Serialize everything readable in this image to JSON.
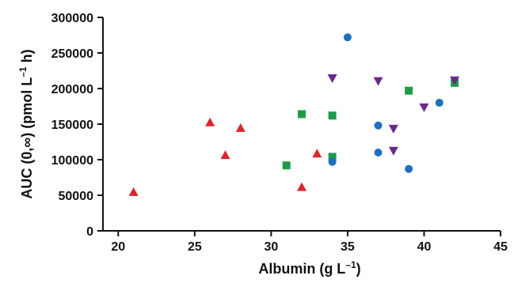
{
  "chart_data": {
    "type": "scatter",
    "xlabel": "Albumin (g L",
    "xlabel_sup": "–1",
    "xlabel_close": ")",
    "ylabel": "AUC (0,∞) (pmol L",
    "ylabel_sup": "–1",
    "ylabel_close": " h)",
    "xlim": [
      19,
      45
    ],
    "ylim": [
      0,
      300000
    ],
    "x_ticks": [
      20,
      25,
      30,
      35,
      40,
      45
    ],
    "y_ticks": [
      0,
      50000,
      100000,
      150000,
      200000,
      250000,
      300000
    ],
    "x_tick_labels": [
      "20",
      "25",
      "30",
      "35",
      "40",
      "45"
    ],
    "y_tick_labels": [
      "0",
      "50000",
      "100000",
      "150000",
      "200000",
      "250000",
      "300000"
    ],
    "grid": false,
    "legend": "none",
    "series": [
      {
        "marker": "triangle-up",
        "color": "#d9262e",
        "points": [
          [
            21,
            54000
          ],
          [
            26,
            152000
          ],
          [
            27,
            106000
          ],
          [
            28,
            144000
          ],
          [
            32,
            61000
          ],
          [
            33,
            108000
          ]
        ]
      },
      {
        "marker": "square",
        "color": "#1f9a4a",
        "points": [
          [
            31,
            92000
          ],
          [
            32,
            164000
          ],
          [
            34,
            162000
          ],
          [
            34,
            104000
          ],
          [
            39,
            197000
          ],
          [
            42,
            208000
          ]
        ]
      },
      {
        "marker": "circle",
        "color": "#1e6fc0",
        "points": [
          [
            34,
            97000
          ],
          [
            35,
            272000
          ],
          [
            37,
            148000
          ],
          [
            37,
            110000
          ],
          [
            39,
            87000
          ],
          [
            41,
            180000
          ]
        ]
      },
      {
        "marker": "triangle-down",
        "color": "#6b2a8a",
        "points": [
          [
            34,
            215000
          ],
          [
            37,
            211000
          ],
          [
            38,
            144000
          ],
          [
            38,
            113000
          ],
          [
            40,
            174000
          ],
          [
            42,
            212000
          ]
        ]
      }
    ]
  }
}
